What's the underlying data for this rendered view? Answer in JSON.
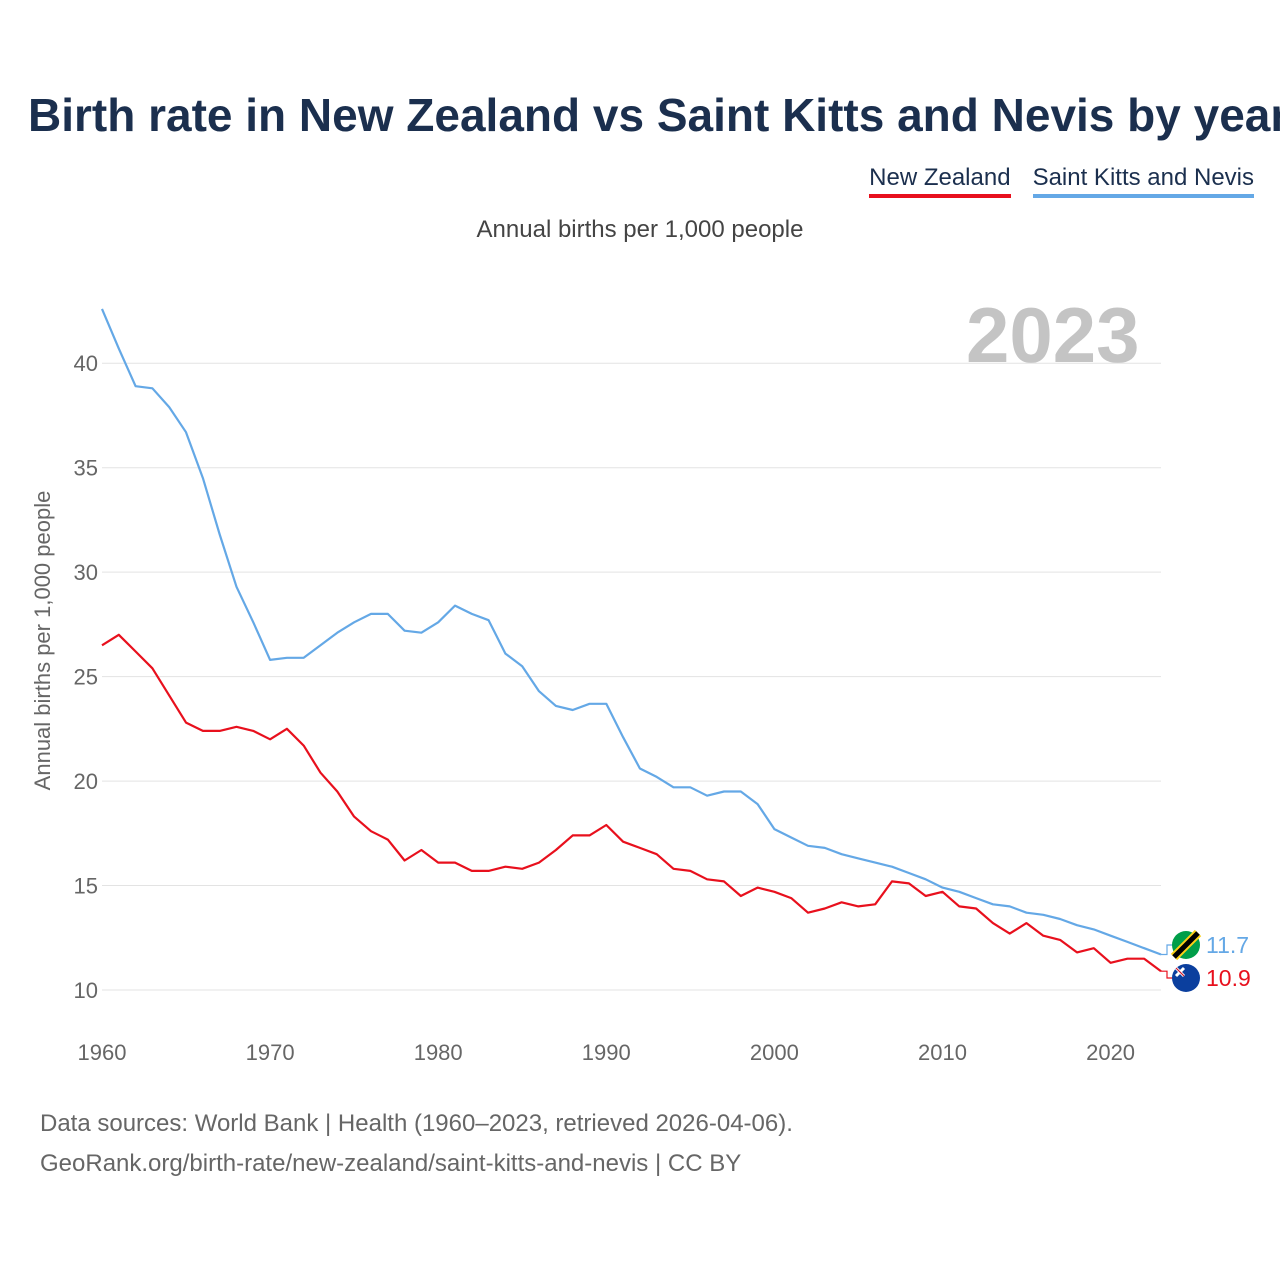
{
  "title": "Birth rate in New Zealand vs Saint Kitts and Nevis by year",
  "subtitle": "Annual births per 1,000 people",
  "year_label": "2023",
  "legend": [
    {
      "name": "New Zealand",
      "color": "#e8101d"
    },
    {
      "name": "Saint Kitts and Nevis",
      "color": "#64a8e6"
    }
  ],
  "source_line1": "Data sources: World Bank | Health (1960–2023, retrieved 2026-04-06).",
  "source_line2": "GeoRank.org/birth-rate/new-zealand/saint-kitts-and-nevis | CC BY",
  "chart_data": {
    "type": "line",
    "title": "Birth rate in New Zealand vs Saint Kitts and Nevis by year",
    "ylabel": "Annual births per 1,000 people",
    "xlabel": "",
    "xlim": [
      1960,
      2023
    ],
    "ylim": [
      10,
      42.5
    ],
    "xticks": [
      1960,
      1970,
      1980,
      1990,
      2000,
      2010,
      2020
    ],
    "yticks": [
      10,
      15,
      20,
      25,
      30,
      35,
      40
    ],
    "grid": true,
    "x": [
      1960,
      1961,
      1962,
      1963,
      1964,
      1965,
      1966,
      1967,
      1968,
      1969,
      1970,
      1971,
      1972,
      1973,
      1974,
      1975,
      1976,
      1977,
      1978,
      1979,
      1980,
      1981,
      1982,
      1983,
      1984,
      1985,
      1986,
      1987,
      1988,
      1989,
      1990,
      1991,
      1992,
      1993,
      1994,
      1995,
      1996,
      1997,
      1998,
      1999,
      2000,
      2001,
      2002,
      2003,
      2004,
      2005,
      2006,
      2007,
      2008,
      2009,
      2010,
      2011,
      2012,
      2013,
      2014,
      2015,
      2016,
      2017,
      2018,
      2019,
      2020,
      2021,
      2022,
      2023
    ],
    "series": [
      {
        "name": "New Zealand",
        "color": "#e8101d",
        "end_value": "10.9",
        "values": [
          26.5,
          27.0,
          26.2,
          25.4,
          24.1,
          22.8,
          22.4,
          22.4,
          22.6,
          22.4,
          22.0,
          22.5,
          21.7,
          20.4,
          19.5,
          18.3,
          17.6,
          17.2,
          16.2,
          16.7,
          16.1,
          16.1,
          15.7,
          15.7,
          15.9,
          15.8,
          16.1,
          16.7,
          17.4,
          17.4,
          17.9,
          17.1,
          16.8,
          16.5,
          15.8,
          15.7,
          15.3,
          15.2,
          14.5,
          14.9,
          14.7,
          14.4,
          13.7,
          13.9,
          14.2,
          14.0,
          14.1,
          15.2,
          15.1,
          14.5,
          14.7,
          14.0,
          13.9,
          13.2,
          12.7,
          13.2,
          12.6,
          12.4,
          11.8,
          12.0,
          11.3,
          11.5,
          11.5,
          10.9
        ]
      },
      {
        "name": "Saint Kitts and Nevis",
        "color": "#64a8e6",
        "end_value": "11.7",
        "values": [
          42.6,
          40.7,
          38.9,
          38.8,
          37.9,
          36.7,
          34.5,
          31.8,
          29.3,
          27.6,
          25.8,
          25.9,
          25.9,
          26.5,
          27.1,
          27.6,
          28.0,
          28.0,
          27.2,
          27.1,
          27.6,
          28.4,
          28.0,
          27.7,
          26.1,
          25.5,
          24.3,
          23.6,
          23.4,
          23.7,
          23.7,
          22.1,
          20.6,
          20.2,
          19.7,
          19.7,
          19.3,
          19.5,
          19.5,
          18.9,
          17.7,
          17.3,
          16.9,
          16.8,
          16.5,
          16.3,
          16.1,
          15.9,
          15.6,
          15.3,
          14.9,
          14.7,
          14.4,
          14.1,
          14.0,
          13.7,
          13.6,
          13.4,
          13.1,
          12.9,
          12.6,
          12.3,
          12.0,
          11.7
        ]
      }
    ]
  }
}
